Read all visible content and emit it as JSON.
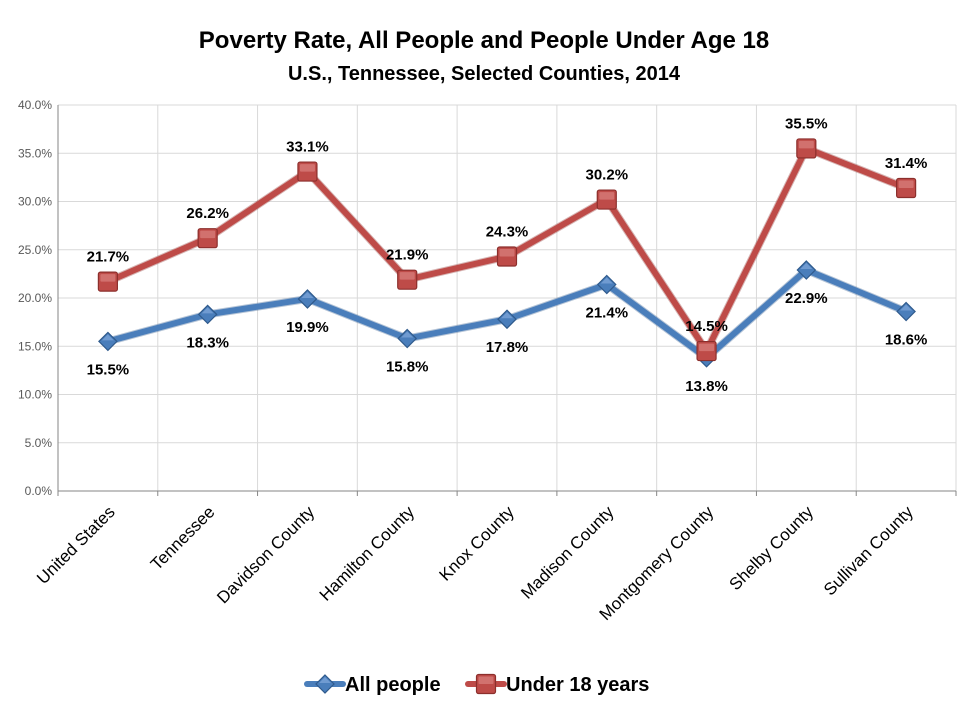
{
  "chart_data": {
    "type": "line",
    "title": "Poverty Rate, All People and People Under Age 18",
    "subtitle": "U.S., Tennessee, Selected Counties, 2014",
    "categories": [
      "United States",
      "Tennessee",
      "Davidson County",
      "Hamilton County",
      "Knox County",
      "Madison County",
      "Montgomery County",
      "Shelby County",
      "Sullivan County"
    ],
    "ylim": [
      0,
      40
    ],
    "yticks": [
      "0.0%",
      "5.0%",
      "10.0%",
      "15.0%",
      "20.0%",
      "25.0%",
      "30.0%",
      "35.0%",
      "40.0%"
    ],
    "grid": true,
    "legend_position": "bottom",
    "series": [
      {
        "name": "All people",
        "color": "#4A7EBB",
        "marker": "diamond",
        "values": [
          15.5,
          18.3,
          19.9,
          15.8,
          17.8,
          21.4,
          13.8,
          22.9,
          18.6
        ],
        "labels": [
          "15.5%",
          "18.3%",
          "19.9%",
          "15.8%",
          "17.8%",
          "21.4%",
          "13.8%",
          "22.9%",
          "18.6%"
        ]
      },
      {
        "name": "Under 18 years",
        "color": "#BE4B48",
        "marker": "square",
        "values": [
          21.7,
          26.2,
          33.1,
          21.9,
          24.3,
          30.2,
          14.5,
          35.5,
          31.4
        ],
        "labels": [
          "21.7%",
          "26.2%",
          "33.1%",
          "21.9%",
          "24.3%",
          "30.2%",
          "14.5%",
          "35.5%",
          "31.4%"
        ]
      }
    ]
  }
}
